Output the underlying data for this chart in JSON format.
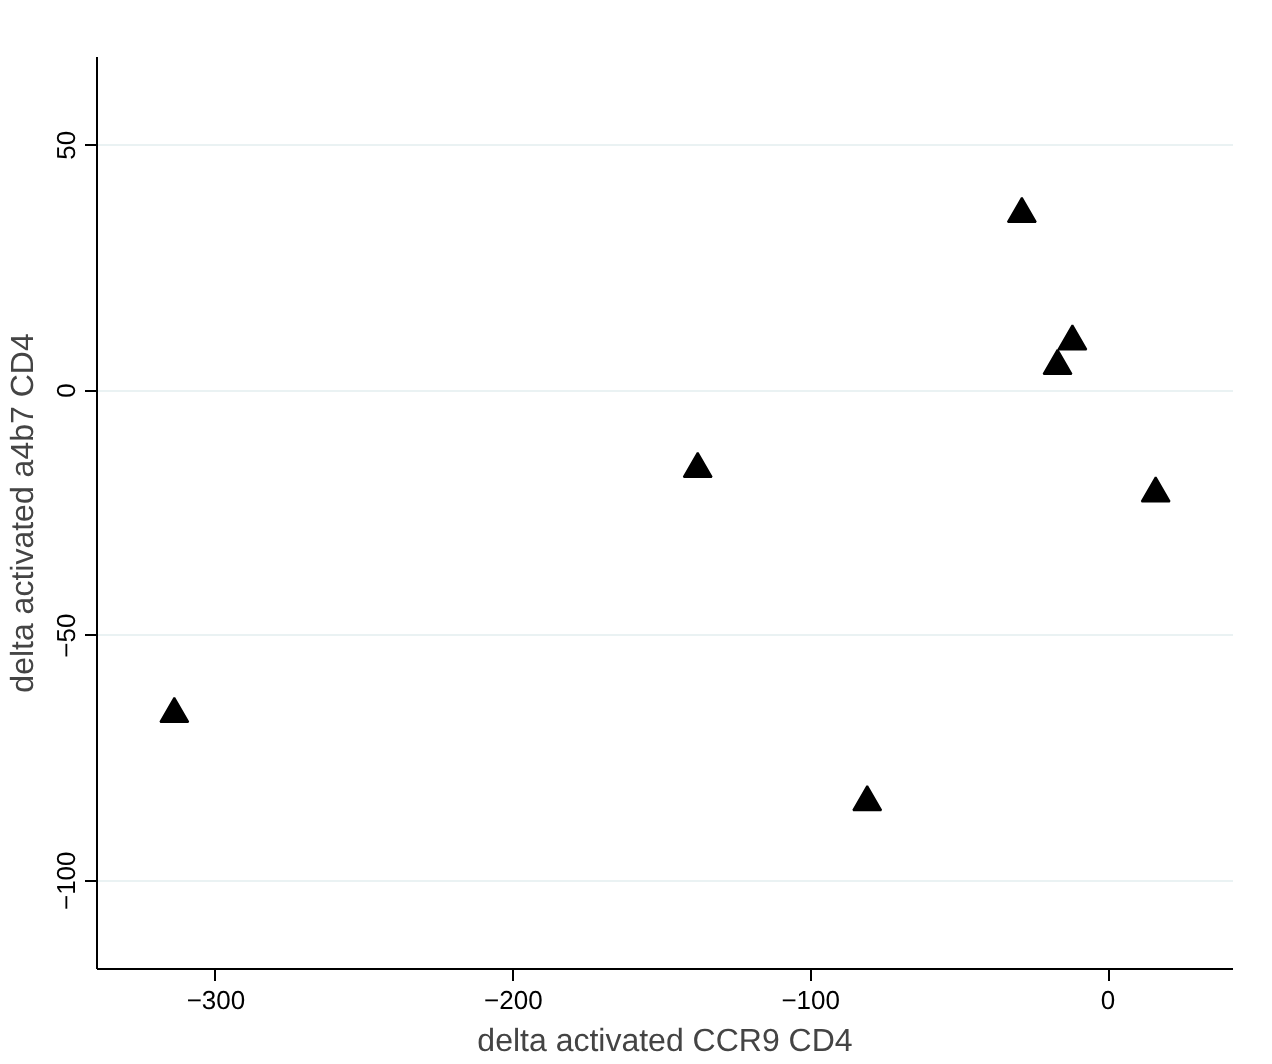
{
  "chart_data": {
    "type": "scatter",
    "xlabel": "delta activated CCR9 CD4",
    "ylabel": "delta activated a4b7 CD4",
    "x": [
      -314,
      -138,
      -81,
      -29,
      -17,
      -12,
      16
    ],
    "values": [
      -66,
      -16,
      -84,
      36,
      5,
      10,
      -21
    ],
    "color": "#000000",
    "marker": "triangle",
    "xlim": [
      -340,
      42
    ],
    "ylim": [
      -118,
      68
    ],
    "xticks": [
      -300,
      -200,
      -100,
      0
    ],
    "yticks": [
      -100,
      -50,
      0,
      50
    ],
    "grid": "y"
  }
}
